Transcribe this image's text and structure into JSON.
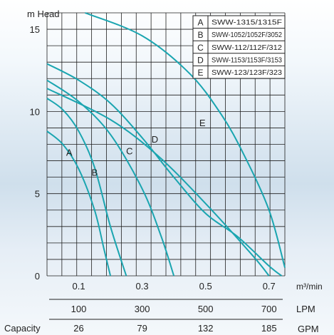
{
  "chart_data": {
    "type": "line",
    "ylabel": "m Head",
    "xlabel_primary": "m³/min",
    "x_ticks": [
      "0.1",
      "0.3",
      "0.5",
      "0.7"
    ],
    "y_ticks": [
      "0",
      "5",
      "10",
      "15"
    ],
    "xlim": [
      0,
      0.75
    ],
    "ylim": [
      0,
      16
    ],
    "grid": true,
    "lpm_label": "LPM",
    "lpm_ticks": [
      "100",
      "300",
      "500",
      "700"
    ],
    "gpm_label": "GPM",
    "gpm_ticks": [
      "26",
      "79",
      "132",
      "185"
    ],
    "capacity_label": "Capacity",
    "legend_position": "top-right",
    "legend": [
      {
        "key": "A",
        "model": "SWW-1315/1315F"
      },
      {
        "key": "B",
        "model": "SWW-1052/1052F/3052"
      },
      {
        "key": "C",
        "model": "SWW-112/112F/312"
      },
      {
        "key": "D",
        "model": "SWW-1153/1153F/3153"
      },
      {
        "key": "E",
        "model": "SWW-123/123F/323"
      }
    ],
    "series": [
      {
        "name": "A",
        "label_at": [
          0.07,
          7.3
        ],
        "points": [
          [
            0,
            8.8
          ],
          [
            0.05,
            8.0
          ],
          [
            0.1,
            6.5
          ],
          [
            0.15,
            4.0
          ],
          [
            0.18,
            1.6
          ],
          [
            0.2,
            0
          ]
        ]
      },
      {
        "name": "B",
        "label_at": [
          0.15,
          6.1
        ],
        "points": [
          [
            0,
            10.8
          ],
          [
            0.05,
            10.1
          ],
          [
            0.1,
            8.8
          ],
          [
            0.15,
            6.6
          ],
          [
            0.2,
            3.0
          ],
          [
            0.25,
            0
          ]
        ]
      },
      {
        "name": "C",
        "label_at": [
          0.26,
          7.4
        ],
        "points": [
          [
            0,
            11.9
          ],
          [
            0.1,
            10.6
          ],
          [
            0.2,
            8.6
          ],
          [
            0.3,
            5.3
          ],
          [
            0.36,
            2.4
          ],
          [
            0.4,
            0
          ]
        ]
      },
      {
        "name": "D",
        "label_at": [
          0.34,
          8.1
        ],
        "points": [
          [
            0,
            11.4
          ],
          [
            0.2,
            9.5
          ],
          [
            0.35,
            7.3
          ],
          [
            0.5,
            4.4
          ],
          [
            0.65,
            1.2
          ],
          [
            0.7,
            0
          ]
        ]
      },
      {
        "name": "E",
        "label_at": [
          0.49,
          9.1
        ],
        "points": [
          [
            0,
            12.9
          ],
          [
            0.1,
            11.9
          ],
          [
            0.2,
            10.5
          ],
          [
            0.3,
            8.4
          ],
          [
            0.4,
            6.0
          ],
          [
            0.5,
            3.8
          ],
          [
            0.6,
            2.4
          ],
          [
            0.7,
            0.6
          ],
          [
            0.74,
            0
          ]
        ]
      },
      {
        "name": "A2",
        "points": [
          [
            0.12,
            16
          ],
          [
            0.3,
            14.6
          ],
          [
            0.45,
            12.3
          ],
          [
            0.55,
            9.8
          ],
          [
            0.62,
            7.4
          ],
          [
            0.7,
            4.0
          ],
          [
            0.75,
            0.5
          ]
        ]
      }
    ],
    "series_color": "#1aa5b0"
  }
}
